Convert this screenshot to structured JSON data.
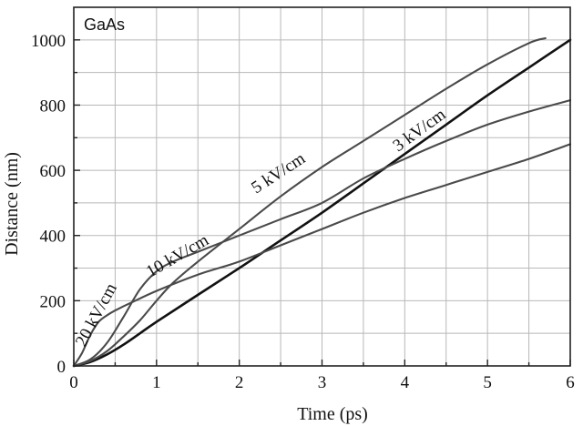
{
  "chart_data": {
    "type": "line",
    "title": "",
    "inset_title": "GaAs",
    "xlabel": "Time (ps)",
    "ylabel": "Distance (nm)",
    "xlim": [
      0,
      6
    ],
    "ylim": [
      0,
      1100
    ],
    "x_ticks": [
      0,
      1,
      2,
      3,
      4,
      5,
      6
    ],
    "y_ticks": [
      0,
      200,
      400,
      600,
      800,
      1000
    ],
    "x_minor_step": 0.5,
    "y_minor_step": 100,
    "grid": true,
    "colors": {
      "curve": "#4a4a4a",
      "curve_bold": "#111111",
      "grid": "#b8b8b8"
    },
    "series": [
      {
        "name": "3 kV/cm",
        "x": [
          0,
          0.2,
          0.4,
          0.6,
          0.8,
          1.0,
          1.5,
          2.0,
          2.5,
          3.0,
          3.5,
          4.0,
          4.5,
          5.0,
          5.5,
          6.0
        ],
        "y": [
          0,
          12,
          35,
          65,
          100,
          135,
          218,
          300,
          385,
          470,
          560,
          650,
          740,
          830,
          915,
          1000
        ]
      },
      {
        "name": "5 kV/cm",
        "x": [
          0,
          0.2,
          0.4,
          0.6,
          0.8,
          1.0,
          1.2,
          1.5,
          2.0,
          2.5,
          3.0,
          3.5,
          4.0,
          4.5,
          5.0,
          5.5,
          5.7
        ],
        "y": [
          0,
          15,
          45,
          90,
          140,
          200,
          255,
          320,
          420,
          520,
          610,
          690,
          770,
          850,
          925,
          990,
          1005
        ]
      },
      {
        "name": "10 kV/cm",
        "x": [
          0,
          0.2,
          0.4,
          0.6,
          0.8,
          1.0,
          1.2,
          1.5,
          2.0,
          2.5,
          3.0,
          3.5,
          4.0,
          4.5,
          5.0,
          5.5,
          6.0
        ],
        "y": [
          0,
          20,
          70,
          150,
          235,
          290,
          320,
          350,
          400,
          450,
          500,
          575,
          635,
          690,
          740,
          780,
          815
        ]
      },
      {
        "name": "20 kV/cm",
        "x": [
          0,
          0.1,
          0.2,
          0.3,
          0.4,
          0.5,
          0.7,
          1.0,
          1.5,
          2.0,
          2.5,
          3.0,
          3.5,
          4.0,
          4.5,
          5.0,
          5.5,
          6.0
        ],
        "y": [
          0,
          40,
          95,
          135,
          155,
          170,
          195,
          230,
          280,
          320,
          370,
          420,
          470,
          515,
          555,
          595,
          635,
          680
        ]
      }
    ],
    "curve_labels": [
      {
        "text": "20 kV/cm",
        "series": "20 kV/cm"
      },
      {
        "text": "10 kV/cm",
        "series": "10 kV/cm"
      },
      {
        "text": "5 kV/cm",
        "series": "5 kV/cm"
      },
      {
        "text": "3 kV/cm",
        "series": "3 kV/cm"
      }
    ]
  }
}
